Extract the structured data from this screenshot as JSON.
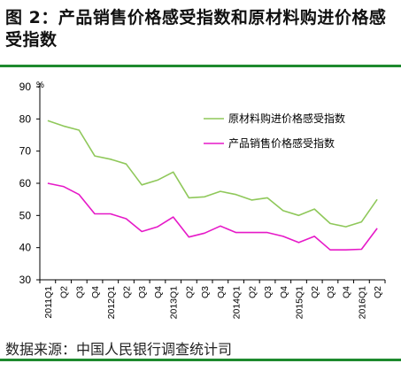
{
  "figure": {
    "title": "图 2：产品销售价格感受指数和原材料购进价格感受指数",
    "source": "数据来源：中国人民银行调查统计司"
  },
  "colors": {
    "rule": "#1e8a2e",
    "raw_material": "#8fc85a",
    "product": "#e619c8"
  },
  "chart_data": {
    "type": "line",
    "title": "",
    "xlabel": "",
    "ylabel": "%",
    "ylim": [
      30,
      90
    ],
    "yticks": [
      30,
      40,
      50,
      60,
      70,
      80,
      90
    ],
    "grid": false,
    "legend_position": "top-right",
    "x": [
      "2011Q1",
      "Q2",
      "Q3",
      "Q4",
      "2012Q1",
      "Q2",
      "Q3",
      "Q4",
      "2013Q1",
      "Q2",
      "Q3",
      "Q4",
      "2014Q1",
      "Q2",
      "Q3",
      "Q4",
      "2015Q1",
      "Q2",
      "Q3",
      "Q4",
      "2016Q1",
      "Q2"
    ],
    "series": [
      {
        "name": "原材料购进价格感受指数",
        "color": "#8fc85a",
        "values": [
          79.5,
          77.8,
          76.5,
          68.5,
          67.5,
          66.0,
          59.5,
          61.0,
          63.5,
          55.5,
          55.8,
          57.5,
          56.5,
          54.8,
          55.5,
          51.5,
          50.0,
          52.0,
          47.5,
          46.5,
          48.0,
          55.0
        ]
      },
      {
        "name": "产品销售价格感受指数",
        "color": "#e619c8",
        "values": [
          60.0,
          59.0,
          56.5,
          50.5,
          50.5,
          49.0,
          45.0,
          46.5,
          49.5,
          43.3,
          44.5,
          46.7,
          44.7,
          44.7,
          44.7,
          43.5,
          41.6,
          43.5,
          39.3,
          39.3,
          39.5,
          46.0
        ]
      }
    ]
  }
}
